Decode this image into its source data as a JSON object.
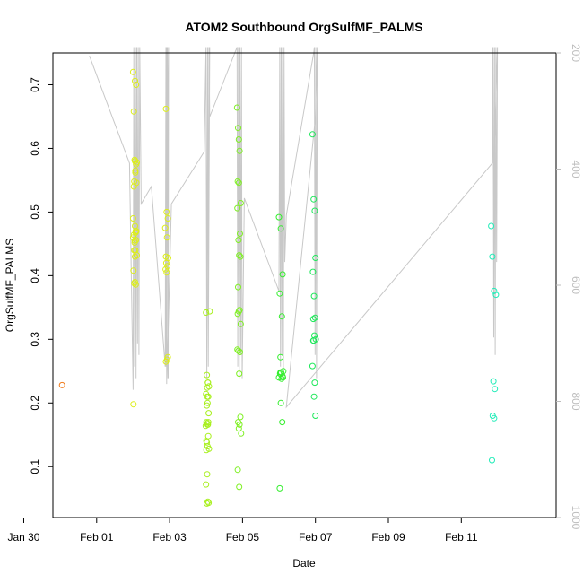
{
  "chart_data": {
    "type": "scatter",
    "title": "ATOM2 Southbound OrgSulfMF_PALMS",
    "xlabel": "Date",
    "ylabel": "OrgSulfMF_PALMS",
    "x_ticks": [
      "Jan 30",
      "Feb 01",
      "Feb 03",
      "Feb 05",
      "Feb 07",
      "Feb 09",
      "Feb 11"
    ],
    "y_ticks": [
      "0.1",
      "0.2",
      "0.3",
      "0.4",
      "0.5",
      "0.6",
      "0.7"
    ],
    "right_ticks": [
      "200",
      "400",
      "600",
      "800",
      "1000"
    ],
    "xlim": [
      -1.2,
      12.6
    ],
    "ylim": [
      0.02,
      0.75
    ],
    "right_ylim": [
      1000,
      200
    ],
    "point_colors": {
      "orange": "#f07a1a",
      "yellow": "#dcee1a",
      "yellowgreen": "#a8f01e",
      "green1": "#7ef022",
      "green2": "#34ee2e",
      "green3": "#1ee85a",
      "teal": "#22ecb8"
    },
    "series": [
      {
        "color": "orange",
        "x": [
          -0.95
        ],
        "y": [
          0.228
        ]
      },
      {
        "color": "yellow",
        "x": [
          1.0,
          1.05,
          1.08,
          1.02,
          1.04,
          1.1,
          1.06,
          1.03,
          1.09,
          1.0,
          1.05,
          1.07,
          1.02,
          1.08,
          1.04,
          1.06,
          1.1,
          1.01,
          1.05,
          1.03,
          1.07,
          1.09,
          1.04,
          1.0,
          1.06,
          1.02,
          1.08,
          1.05,
          1.03,
          1.07,
          1.01,
          1.05,
          1.9,
          1.92,
          1.95,
          1.88,
          1.93,
          1.9,
          1.96,
          1.91,
          1.94,
          1.89,
          1.92,
          1.95,
          1.93,
          1.9
        ],
        "y": [
          0.72,
          0.706,
          0.7,
          0.658,
          0.582,
          0.578,
          0.562,
          0.548,
          0.546,
          0.49,
          0.478,
          0.468,
          0.464,
          0.456,
          0.452,
          0.44,
          0.432,
          0.408,
          0.39,
          0.388,
          0.386,
          0.47,
          0.455,
          0.46,
          0.565,
          0.54,
          0.575,
          0.43,
          0.44,
          0.47,
          0.198,
          0.58,
          0.662,
          0.5,
          0.49,
          0.475,
          0.46,
          0.43,
          0.428,
          0.42,
          0.415,
          0.41,
          0.405,
          0.272,
          0.268,
          0.265
        ]
      },
      {
        "color": "yellowgreen",
        "x": [
          3.0,
          3.02,
          3.05,
          3.08,
          3.03,
          3.0,
          3.06,
          3.04,
          3.02,
          3.07,
          3.01,
          3.03,
          3.05,
          2.99,
          3.06,
          3.02,
          3.04,
          3.08,
          3.01,
          3.03,
          3.0,
          3.05,
          3.07,
          3.02,
          3.04,
          3.01,
          3.03,
          3.06,
          3.1,
          3.05
        ],
        "y": [
          0.342,
          0.244,
          0.232,
          0.226,
          0.224,
          0.214,
          0.21,
          0.2,
          0.196,
          0.184,
          0.17,
          0.168,
          0.166,
          0.164,
          0.148,
          0.138,
          0.132,
          0.128,
          0.126,
          0.088,
          0.072,
          0.045,
          0.043,
          0.042,
          0.166,
          0.14,
          0.21,
          0.17,
          0.344,
          0.232
        ]
      },
      {
        "color": "green1",
        "x": [
          3.85,
          3.88,
          3.9,
          3.92,
          3.87,
          3.9,
          3.95,
          3.86,
          3.93,
          3.89,
          3.91,
          3.94,
          3.88,
          3.92,
          3.9,
          3.87,
          3.95,
          3.86,
          3.93,
          3.89,
          3.91,
          3.94,
          3.88,
          3.92,
          3.9,
          3.96,
          3.87,
          3.91
        ],
        "y": [
          0.664,
          0.632,
          0.614,
          0.596,
          0.548,
          0.546,
          0.514,
          0.506,
          0.466,
          0.456,
          0.432,
          0.43,
          0.382,
          0.346,
          0.344,
          0.34,
          0.324,
          0.284,
          0.28,
          0.282,
          0.246,
          0.178,
          0.17,
          0.166,
          0.16,
          0.152,
          0.095,
          0.068
        ]
      },
      {
        "color": "green2",
        "x": [
          5.0,
          5.05,
          5.1,
          5.02,
          5.08,
          5.04,
          5.12,
          5.06,
          5.03,
          5.1,
          5.0,
          5.07,
          5.05,
          5.09,
          5.02,
          5.11,
          5.04
        ],
        "y": [
          0.492,
          0.474,
          0.402,
          0.372,
          0.336,
          0.272,
          0.25,
          0.248,
          0.246,
          0.242,
          0.24,
          0.238,
          0.2,
          0.17,
          0.066,
          0.24,
          0.248
        ]
      },
      {
        "color": "green3",
        "x": [
          5.92,
          5.95,
          5.98,
          6.0,
          5.93,
          5.96,
          5.99,
          5.94,
          5.97,
          6.01,
          5.95,
          5.92,
          5.98,
          5.96,
          6.0,
          5.94
        ],
        "y": [
          0.622,
          0.52,
          0.502,
          0.428,
          0.406,
          0.368,
          0.334,
          0.332,
          0.306,
          0.3,
          0.298,
          0.258,
          0.232,
          0.21,
          0.18,
          0.298
        ]
      },
      {
        "color": "teal",
        "x": [
          10.82,
          10.85,
          10.9,
          10.95,
          10.88,
          10.92,
          10.86,
          10.9,
          10.84
        ],
        "y": [
          0.478,
          0.43,
          0.376,
          0.37,
          0.234,
          0.222,
          0.18,
          0.176,
          0.11
        ]
      }
    ],
    "altitude_trace": {
      "color": "#c8c8c8",
      "x": [
        -0.2,
        0.9,
        1.0,
        1.02,
        1.04,
        1.06,
        1.08,
        1.1,
        1.12,
        1.14,
        1.16,
        1.18,
        1.22,
        1.5,
        1.88,
        1.9,
        1.92,
        1.94,
        1.96,
        1.97,
        1.9,
        1.92,
        1.93,
        2.05,
        2.95,
        3.0,
        3.02,
        3.04,
        3.06,
        3.1,
        3.05,
        3.08,
        3.1,
        3.85,
        3.87,
        3.89,
        3.91,
        3.93,
        3.95,
        3.97,
        3.99,
        4.05,
        5.0,
        5.02,
        5.04,
        5.06,
        5.08,
        5.1,
        5.12,
        5.14,
        5.16,
        5.2,
        5.95,
        5.97,
        5.99,
        6.01,
        6.03,
        6.05,
        6.0,
        5.2,
        10.85,
        10.87,
        10.89,
        10.91,
        10.93,
        10.95,
        10.97,
        10.99,
        10.88,
        10.86
      ],
      "y": [
        205,
        390,
        780,
        190,
        740,
        190,
        760,
        190,
        700,
        190,
        720,
        190,
        460,
        430,
        740,
        190,
        770,
        190,
        760,
        190,
        740,
        190,
        760,
        460,
        370,
        190,
        760,
        190,
        740,
        190,
        640,
        190,
        310,
        190,
        740,
        190,
        760,
        190,
        720,
        190,
        760,
        450,
        610,
        190,
        740,
        190,
        720,
        190,
        760,
        190,
        560,
        480,
        200,
        190,
        720,
        190,
        760,
        190,
        310,
        810,
        390,
        190,
        690,
        190,
        720,
        190,
        560,
        190,
        420,
        190
      ]
    }
  }
}
